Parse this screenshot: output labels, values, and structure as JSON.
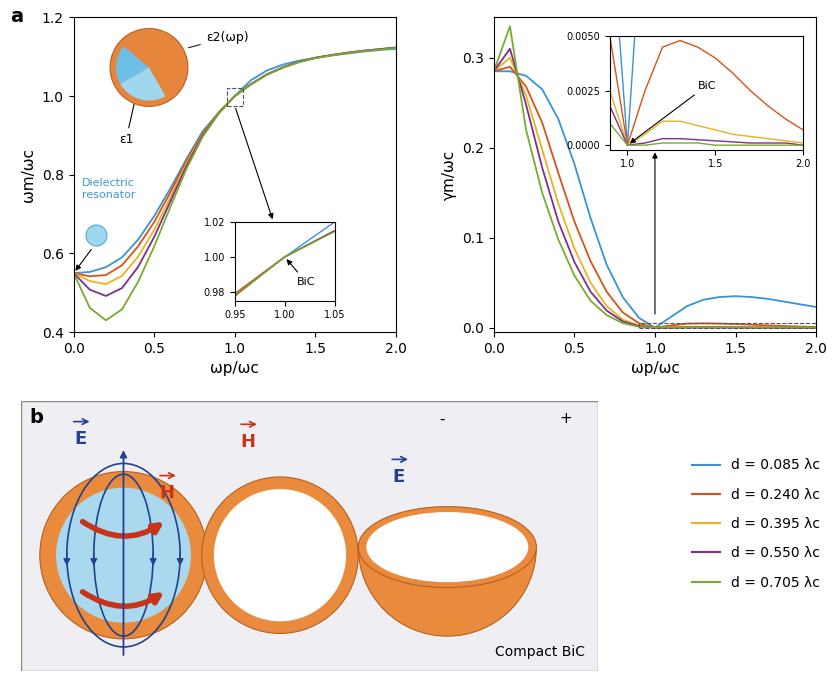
{
  "panel_labels": [
    "a",
    "b"
  ],
  "chart_data": [
    {
      "type": "line",
      "x_label": "ωp/ωc",
      "y_label": "ωm/ωc",
      "x": [
        0.0,
        0.1,
        0.2,
        0.3,
        0.4,
        0.5,
        0.6,
        0.7,
        0.8,
        0.9,
        1.0,
        1.1,
        1.2,
        1.3,
        1.4,
        1.5,
        1.6,
        1.7,
        1.8,
        1.9,
        2.0
      ],
      "xlim": [
        0,
        2
      ],
      "xticks": [
        {
          "value": 0.0,
          "label": "0.0"
        },
        0.5,
        {
          "value": 1.0,
          "label": "1.0"
        },
        1.5,
        {
          "value": 2.0,
          "label": "2.0"
        }
      ],
      "ylim": [
        0.4,
        1.2
      ],
      "yticks": [
        0.4,
        0.6,
        0.8,
        {
          "value": 1.0,
          "label": "1.0"
        },
        1.2
      ],
      "legend": "lower right",
      "series": [
        {
          "name": "d = 0.085 λc",
          "color": "#3a93d3",
          "values": [
            0.55,
            0.553,
            0.565,
            0.59,
            0.635,
            0.695,
            0.765,
            0.84,
            0.91,
            0.958,
            1.0,
            1.04,
            1.065,
            1.08,
            1.09,
            1.097,
            1.103,
            1.108,
            1.113,
            1.117,
            1.12
          ]
        },
        {
          "name": "d = 0.240 λc",
          "color": "#d95319",
          "values": [
            0.55,
            0.542,
            0.545,
            0.57,
            0.618,
            0.68,
            0.755,
            0.835,
            0.905,
            0.958,
            1.0,
            1.03,
            1.055,
            1.073,
            1.087,
            1.097,
            1.104,
            1.11,
            1.115,
            1.119,
            1.123
          ]
        },
        {
          "name": "d = 0.395 λc",
          "color": "#edb120",
          "values": [
            0.55,
            0.53,
            0.522,
            0.543,
            0.592,
            0.66,
            0.742,
            0.828,
            0.902,
            0.957,
            1.0,
            1.03,
            1.055,
            1.073,
            1.087,
            1.097,
            1.104,
            1.11,
            1.115,
            1.119,
            1.123
          ]
        },
        {
          "name": "d = 0.550 λc",
          "color": "#7e2f8e",
          "values": [
            0.55,
            0.508,
            0.492,
            0.512,
            0.566,
            0.642,
            0.732,
            0.822,
            0.9,
            0.956,
            1.0,
            1.03,
            1.055,
            1.073,
            1.087,
            1.097,
            1.104,
            1.11,
            1.115,
            1.119,
            1.123
          ]
        },
        {
          "name": "d = 0.705 λc",
          "color": "#77ac30",
          "values": [
            0.55,
            0.462,
            0.43,
            0.458,
            0.528,
            0.618,
            0.718,
            0.815,
            0.896,
            0.955,
            1.0,
            1.029,
            1.054,
            1.072,
            1.086,
            1.096,
            1.103,
            1.109,
            1.114,
            1.118,
            1.122
          ]
        }
      ],
      "annotations": [
        "ε2(ωp)",
        "ε1",
        "Dielectric\nresonator"
      ],
      "inset": {
        "type": "line",
        "xlim": [
          0.95,
          1.05
        ],
        "xticks": [
          0.95,
          {
            "value": 1.0,
            "label": "1.00"
          },
          1.05
        ],
        "ylim": [
          0.975,
          1.02
        ],
        "yticks": [
          0.98,
          {
            "value": 1.0,
            "label": "1.00"
          },
          1.02
        ],
        "annotations": [
          "BiC"
        ]
      }
    },
    {
      "type": "line",
      "x_label": "ωp/ωc",
      "y_label": "γm/ωc",
      "x": [
        0.0,
        0.1,
        0.2,
        0.3,
        0.4,
        0.5,
        0.6,
        0.7,
        0.8,
        0.9,
        1.0,
        1.1,
        1.2,
        1.3,
        1.4,
        1.5,
        1.6,
        1.7,
        1.8,
        1.9,
        2.0
      ],
      "xlim": [
        0,
        2
      ],
      "xticks": [
        {
          "value": 0.0,
          "label": "0.0"
        },
        0.5,
        {
          "value": 1.0,
          "label": "1.0"
        },
        1.5,
        {
          "value": 2.0,
          "label": "2.0"
        }
      ],
      "ylim": [
        -0.005,
        0.345
      ],
      "yticks": [
        {
          "value": 0.0,
          "label": "0.0"
        },
        0.1,
        0.2,
        0.3
      ],
      "series": [
        {
          "name": "d = 0.085 λc",
          "color": "#3a93d3",
          "values": [
            0.285,
            0.285,
            0.28,
            0.265,
            0.232,
            0.182,
            0.122,
            0.07,
            0.034,
            0.011,
            0.0,
            0.012,
            0.024,
            0.031,
            0.034,
            0.035,
            0.034,
            0.032,
            0.029,
            0.026,
            0.023
          ]
        },
        {
          "name": "d = 0.240 λc",
          "color": "#d95319",
          "values": [
            0.285,
            0.29,
            0.268,
            0.228,
            0.172,
            0.118,
            0.074,
            0.04,
            0.017,
            0.005,
            0.0,
            0.0025,
            0.0045,
            0.0048,
            0.0045,
            0.004,
            0.0033,
            0.0025,
            0.0018,
            0.0012,
            0.0007
          ]
        },
        {
          "name": "d = 0.395 λc",
          "color": "#edb120",
          "values": [
            0.285,
            0.3,
            0.258,
            0.198,
            0.138,
            0.088,
            0.05,
            0.024,
            0.009,
            0.0025,
            0.0,
            0.0005,
            0.0011,
            0.0011,
            0.0009,
            0.0007,
            0.0005,
            0.0004,
            0.0003,
            0.0002,
            0.0001
          ]
        },
        {
          "name": "d = 0.550 λc",
          "color": "#7e2f8e",
          "values": [
            0.285,
            0.31,
            0.248,
            0.178,
            0.118,
            0.073,
            0.04,
            0.019,
            0.007,
            0.0018,
            0.0,
            0.0001,
            0.0003,
            0.0003,
            0.00025,
            0.0002,
            0.00015,
            0.0001,
            0.0001,
            0.0001,
            0.0
          ]
        },
        {
          "name": "d = 0.705 λc",
          "color": "#77ac30",
          "values": [
            0.285,
            0.335,
            0.22,
            0.15,
            0.098,
            0.058,
            0.03,
            0.014,
            0.005,
            0.001,
            0.0,
            0.0,
            0.0001,
            0.0001,
            0.0001,
            0.0,
            0.0,
            0.0,
            0.0,
            0.0,
            0.0
          ]
        }
      ],
      "inset": {
        "type": "line",
        "xlim": [
          0.9,
          2.0
        ],
        "xticks": [
          {
            "value": 1.0,
            "label": "1.0"
          },
          1.5,
          {
            "value": 2.0,
            "label": "2.0"
          }
        ],
        "ylim": [
          -0.0002,
          0.005
        ],
        "yticks": [
          {
            "value": 0.0,
            "label": "0.0000"
          },
          0.0025,
          {
            "value": 0.005,
            "label": "0.0050"
          }
        ],
        "annotations": [
          "BiC"
        ]
      }
    }
  ],
  "panel_b": {
    "field_labels": [
      "E",
      "H",
      "H",
      "E"
    ],
    "colorbar_labels": [
      "-",
      "+"
    ],
    "caption": "Compact BiC"
  }
}
